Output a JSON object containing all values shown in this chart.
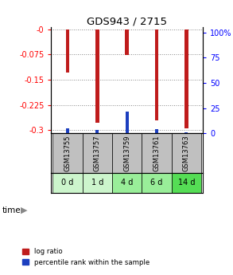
{
  "title": "GDS943 / 2715",
  "samples": [
    "GSM13755",
    "GSM13757",
    "GSM13759",
    "GSM13761",
    "GSM13763"
  ],
  "time_labels": [
    "0 d",
    "1 d",
    "4 d",
    "6 d",
    "14 d"
  ],
  "log_ratio": [
    -0.13,
    -0.278,
    -0.077,
    -0.27,
    -0.295
  ],
  "percentile_rank_pct": [
    5.0,
    3.5,
    22.0,
    4.5,
    1.0
  ],
  "ylim_left": [
    -0.31,
    0.005
  ],
  "ylim_right": [
    0,
    105
  ],
  "yticks_left": [
    0.0,
    -0.075,
    -0.15,
    -0.225,
    -0.3
  ],
  "ytick_labels_left": [
    "-0",
    "-0.075",
    "-0.15",
    "-0.225",
    "-0.3"
  ],
  "yticks_right": [
    0,
    25,
    50,
    75,
    100
  ],
  "ytick_labels_right": [
    "0",
    "25",
    "50",
    "75",
    "100%"
  ],
  "bar_color_red": "#bf1c1c",
  "bar_color_blue": "#1c3fbf",
  "bar_width": 0.12,
  "gsm_bg_color": "#c0c0c0",
  "time_bg_colors": [
    "#ccf5cc",
    "#ccf5cc",
    "#99ee99",
    "#99ee99",
    "#55dd55"
  ],
  "legend_labels": [
    "log ratio",
    "percentile rank within the sample"
  ],
  "fig_bg": "#ffffff"
}
